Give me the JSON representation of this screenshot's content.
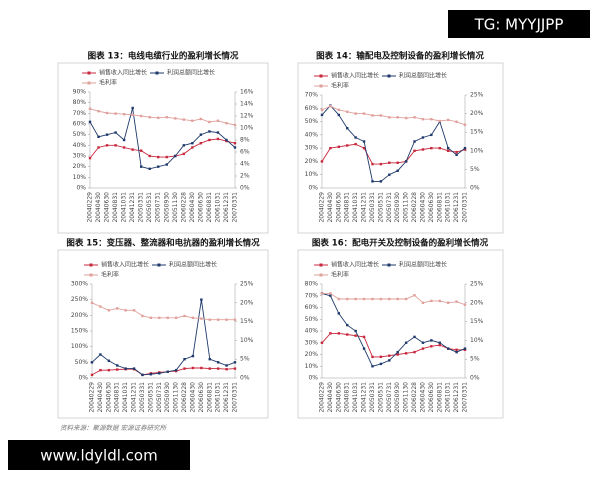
{
  "watermark_top": "TG: MYYJJPP",
  "watermark_bottom": "www.ldyldl.com",
  "source": "资料来源：聚源数据 宏源证券研究所",
  "chart_data": [
    {
      "type": "line",
      "title": "图表 13：电线电缆行业的盈利增长情况",
      "categories": [
        "20040229",
        "20040430",
        "20040630",
        "20040831",
        "20041031",
        "20041231",
        "20050331",
        "20050531",
        "20050731",
        "20050930",
        "20051130",
        "20060228",
        "20060430",
        "20060630",
        "20060831",
        "20061031",
        "20061231",
        "20070331"
      ],
      "series": [
        {
          "name": "销售收入同比增长",
          "color": "#c8283c",
          "values": [
            28,
            38,
            40,
            40,
            38,
            36,
            35,
            30,
            29,
            29,
            30,
            32,
            38,
            42,
            45,
            46,
            44,
            42
          ]
        },
        {
          "name": "利润总额同比增长",
          "color": "#1f3a6b",
          "values": [
            62,
            48,
            50,
            52,
            45,
            75,
            20,
            18,
            20,
            22,
            30,
            40,
            42,
            50,
            53,
            52,
            45,
            38
          ]
        },
        {
          "name": "毛利率",
          "color": "#e0a09c",
          "axis": "y2",
          "values": [
            13.2,
            12.8,
            12.5,
            12.4,
            12.3,
            12.2,
            12,
            11.8,
            11.7,
            11.8,
            11.6,
            11.4,
            11.2,
            11.5,
            11,
            11.2,
            10.8,
            10.5
          ]
        }
      ],
      "ylim": [
        0,
        90
      ],
      "yticks": [
        {
          "value": 0,
          "label": "0%"
        },
        {
          "value": 10,
          "label": "10%"
        },
        {
          "value": 20,
          "label": "20%"
        },
        {
          "value": 30,
          "label": "30%"
        },
        {
          "value": 40,
          "label": "40%"
        },
        {
          "value": 50,
          "label": "50%"
        },
        {
          "value": 60,
          "label": "60%"
        },
        {
          "value": 70,
          "label": "70%"
        },
        {
          "value": 80,
          "label": "80%"
        },
        {
          "value": 90,
          "label": "90%"
        }
      ],
      "y2lim": [
        0,
        16
      ],
      "y2ticks": [
        {
          "value": 0,
          "label": "0%"
        },
        {
          "value": 2,
          "label": "2%"
        },
        {
          "value": 4,
          "label": "4%"
        },
        {
          "value": 6,
          "label": "6%"
        },
        {
          "value": 8,
          "label": "8%"
        },
        {
          "value": 10,
          "label": "10%"
        },
        {
          "value": 12,
          "label": "12%"
        },
        {
          "value": 14,
          "label": "14%"
        },
        {
          "value": 16,
          "label": "16%"
        }
      ]
    },
    {
      "type": "line",
      "title": "图表 14：输配电及控制设备的盈利增长情况",
      "categories": [
        "20040229",
        "20040430",
        "20040630",
        "20040831",
        "20041031",
        "20041231",
        "20050331",
        "20050531",
        "20050731",
        "20050930",
        "20051130",
        "20060228",
        "20060430",
        "20060630",
        "20060831",
        "20061031",
        "20061231",
        "20070331"
      ],
      "series": [
        {
          "name": "销售收入同比增长",
          "color": "#c8283c",
          "values": [
            20,
            30,
            31,
            32,
            33,
            30,
            18,
            18,
            19,
            19,
            20,
            28,
            29,
            30,
            30,
            28,
            27,
            29
          ]
        },
        {
          "name": "利润总额同比增长",
          "color": "#1f3a6b",
          "values": [
            55,
            62,
            55,
            45,
            38,
            35,
            5,
            5,
            10,
            13,
            20,
            35,
            38,
            40,
            50,
            30,
            25,
            30
          ]
        },
        {
          "name": "毛利率",
          "color": "#e0a09c",
          "axis": "y2",
          "values": [
            21,
            22,
            21,
            20.5,
            20,
            20,
            19.5,
            19.5,
            19,
            19,
            18.8,
            19,
            18.5,
            18.5,
            18,
            18.3,
            17.8,
            17
          ]
        }
      ],
      "ylim": [
        0,
        70
      ],
      "yticks": [
        {
          "value": 0,
          "label": "0%"
        },
        {
          "value": 10,
          "label": "10%"
        },
        {
          "value": 20,
          "label": "20%"
        },
        {
          "value": 30,
          "label": "30%"
        },
        {
          "value": 40,
          "label": "40%"
        },
        {
          "value": 50,
          "label": "50%"
        },
        {
          "value": 60,
          "label": "60%"
        },
        {
          "value": 70,
          "label": "70%"
        }
      ],
      "y2lim": [
        0,
        25
      ],
      "y2ticks": [
        {
          "value": 0,
          "label": "0%"
        },
        {
          "value": 5,
          "label": "5%"
        },
        {
          "value": 10,
          "label": "10%"
        },
        {
          "value": 15,
          "label": "15%"
        },
        {
          "value": 20,
          "label": "20%"
        },
        {
          "value": 25,
          "label": "25%"
        }
      ]
    },
    {
      "type": "line",
      "title": "图表 15：变压器、整流器和电抗器的盈利增长情况",
      "categories": [
        "20040229",
        "20040430",
        "20040630",
        "20040831",
        "20041031",
        "20041231",
        "20050331",
        "20050531",
        "20050731",
        "20050930",
        "20051130",
        "20060228",
        "20060430",
        "20060630",
        "20060831",
        "20061031",
        "20061231",
        "20070331"
      ],
      "series": [
        {
          "name": "销售收入同比增长",
          "color": "#c8283c",
          "values": [
            10,
            25,
            25,
            27,
            28,
            28,
            10,
            15,
            18,
            20,
            22,
            30,
            32,
            32,
            30,
            30,
            28,
            30
          ]
        },
        {
          "name": "利润总额同比增长",
          "color": "#1f3a6b",
          "values": [
            50,
            75,
            55,
            40,
            30,
            30,
            10,
            12,
            15,
            20,
            25,
            60,
            70,
            250,
            60,
            50,
            40,
            50
          ]
        },
        {
          "name": "毛利率",
          "color": "#e0a09c",
          "axis": "y2",
          "values": [
            20,
            19,
            18,
            18.5,
            18,
            18,
            16.5,
            16,
            16,
            16,
            16,
            16.5,
            16,
            15.8,
            15.5,
            15.5,
            15.5,
            15.5
          ]
        }
      ],
      "ylim": [
        0,
        300
      ],
      "yticks": [
        {
          "value": 0,
          "label": "0%"
        },
        {
          "value": 50,
          "label": "50%"
        },
        {
          "value": 100,
          "label": "100%"
        },
        {
          "value": 150,
          "label": "150%"
        },
        {
          "value": 200,
          "label": "200%"
        },
        {
          "value": 250,
          "label": "250%"
        },
        {
          "value": 300,
          "label": "300%"
        }
      ],
      "y2lim": [
        0,
        25
      ],
      "y2ticks": [
        {
          "value": 0,
          "label": "0%"
        },
        {
          "value": 5,
          "label": "5%"
        },
        {
          "value": 10,
          "label": "10%"
        },
        {
          "value": 15,
          "label": "15%"
        },
        {
          "value": 20,
          "label": "20%"
        },
        {
          "value": 25,
          "label": "25%"
        }
      ]
    },
    {
      "type": "line",
      "title": "图表 16：配电开关及控制设备的盈利增长情况",
      "categories": [
        "20040229",
        "20040430",
        "20040630",
        "20040831",
        "20041031",
        "20041231",
        "20050331",
        "20050531",
        "20050731",
        "20050930",
        "20051130",
        "20060228",
        "20060430",
        "20060630",
        "20060831",
        "20061031",
        "20061231",
        "20070331"
      ],
      "series": [
        {
          "name": "销售收入同比增长",
          "color": "#c8283c",
          "values": [
            30,
            38,
            38,
            37,
            36,
            35,
            18,
            18,
            19,
            20,
            21,
            22,
            25,
            27,
            28,
            25,
            24,
            24
          ]
        },
        {
          "name": "利润总额同比增长",
          "color": "#1f3a6b",
          "values": [
            72,
            70,
            55,
            45,
            40,
            25,
            10,
            12,
            15,
            22,
            30,
            35,
            30,
            32,
            30,
            25,
            22,
            25
          ]
        },
        {
          "name": "毛利率",
          "color": "#e0a09c",
          "axis": "y2",
          "values": [
            22.5,
            22.5,
            21,
            21,
            21,
            21,
            21,
            21,
            21,
            21,
            21,
            22,
            20,
            20.5,
            20.5,
            20,
            20.3,
            19.5
          ]
        }
      ],
      "ylim": [
        0,
        80
      ],
      "yticks": [
        {
          "value": 0,
          "label": "0%"
        },
        {
          "value": 10,
          "label": "10%"
        },
        {
          "value": 20,
          "label": "20%"
        },
        {
          "value": 30,
          "label": "30%"
        },
        {
          "value": 40,
          "label": "40%"
        },
        {
          "value": 50,
          "label": "50%"
        },
        {
          "value": 60,
          "label": "60%"
        },
        {
          "value": 70,
          "label": "70%"
        },
        {
          "value": 80,
          "label": "80%"
        }
      ],
      "y2lim": [
        0,
        25
      ],
      "y2ticks": [
        {
          "value": 0,
          "label": "0%"
        },
        {
          "value": 5,
          "label": "5%"
        },
        {
          "value": 10,
          "label": "10%"
        },
        {
          "value": 15,
          "label": "15%"
        },
        {
          "value": 20,
          "label": "20%"
        },
        {
          "value": 25,
          "label": "25%"
        }
      ]
    }
  ]
}
